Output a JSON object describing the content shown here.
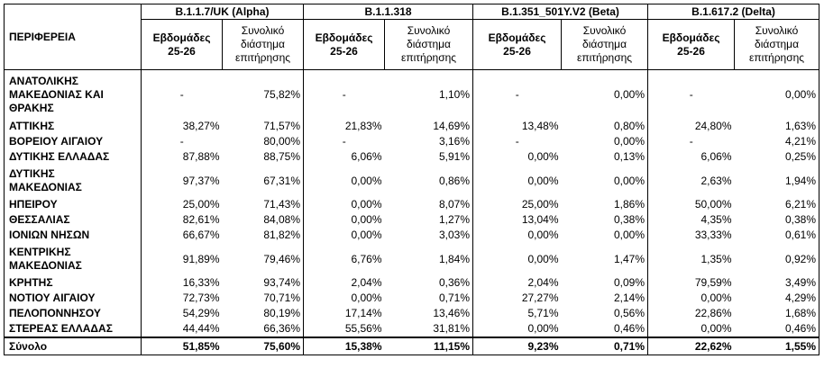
{
  "table": {
    "region_header": "ΠΕΡΙΦΕΡΕΙΑ",
    "variants": [
      {
        "name": "B.1.1.7/UK (Alpha)"
      },
      {
        "name": "B.1.1.318"
      },
      {
        "name": "B.1.351_501Y.V2 (Beta)"
      },
      {
        "name": "B.1.617.2 (Delta)"
      }
    ],
    "sub_week": [
      "Εβδομάδες",
      "25-26"
    ],
    "sub_total": [
      "Συνολικό",
      "διάστημα",
      "επιτήρησης"
    ],
    "rows": [
      {
        "region": [
          "ΑΝΑΤΟΛΙΚΗΣ",
          "ΜΑΚΕΔΟΝΙΑΣ ΚΑΙ",
          "ΘΡΑΚΗΣ"
        ],
        "values": [
          "-",
          "75,82%",
          "-",
          "1,10%",
          "-",
          "0,00%",
          "-",
          "0,00%"
        ]
      },
      {
        "region": [
          "ΑΤΤΙΚΗΣ"
        ],
        "values": [
          "38,27%",
          "71,57%",
          "21,83%",
          "14,69%",
          "13,48%",
          "0,80%",
          "24,80%",
          "1,63%"
        ]
      },
      {
        "region": [
          "ΒΟΡΕΙΟΥ ΑΙΓΑΙΟΥ"
        ],
        "values": [
          "-",
          "80,00%",
          "-",
          "3,16%",
          "-",
          "0,00%",
          "-",
          "4,21%"
        ]
      },
      {
        "region": [
          "ΔΥΤΙΚΗΣ ΕΛΛΑΔΑΣ"
        ],
        "values": [
          "87,88%",
          "88,75%",
          "6,06%",
          "5,91%",
          "0,00%",
          "0,13%",
          "6,06%",
          "0,25%"
        ]
      },
      {
        "region": [
          "ΔΥΤΙΚΗΣ",
          "ΜΑΚΕΔΟΝΙΑΣ"
        ],
        "values": [
          "97,37%",
          "67,31%",
          "0,00%",
          "0,86%",
          "0,00%",
          "0,00%",
          "2,63%",
          "1,94%"
        ]
      },
      {
        "region": [
          "ΗΠΕΙΡΟΥ"
        ],
        "values": [
          "25,00%",
          "71,43%",
          "0,00%",
          "8,07%",
          "25,00%",
          "1,86%",
          "50,00%",
          "6,21%"
        ]
      },
      {
        "region": [
          "ΘΕΣΣΑΛΙΑΣ"
        ],
        "values": [
          "82,61%",
          "84,08%",
          "0,00%",
          "1,27%",
          "13,04%",
          "0,38%",
          "4,35%",
          "0,38%"
        ]
      },
      {
        "region": [
          "ΙΟΝΙΩΝ ΝΗΣΩΝ"
        ],
        "values": [
          "66,67%",
          "81,82%",
          "0,00%",
          "3,03%",
          "0,00%",
          "0,00%",
          "33,33%",
          "0,61%"
        ]
      },
      {
        "region": [
          "ΚΕΝΤΡΙΚΗΣ",
          "ΜΑΚΕΔΟΝΙΑΣ"
        ],
        "values": [
          "91,89%",
          "79,46%",
          "6,76%",
          "1,84%",
          "0,00%",
          "1,47%",
          "1,35%",
          "0,92%"
        ]
      },
      {
        "region": [
          "ΚΡΗΤΗΣ"
        ],
        "values": [
          "16,33%",
          "93,74%",
          "2,04%",
          "0,36%",
          "2,04%",
          "0,09%",
          "79,59%",
          "3,49%"
        ]
      },
      {
        "region": [
          "ΝΟΤΙΟΥ ΑΙΓΑΙΟΥ"
        ],
        "values": [
          "72,73%",
          "70,71%",
          "0,00%",
          "0,71%",
          "27,27%",
          "2,14%",
          "0,00%",
          "4,29%"
        ]
      },
      {
        "region": [
          "ΠΕΛΟΠΟΝΝΗΣΟΥ"
        ],
        "values": [
          "54,29%",
          "80,19%",
          "17,14%",
          "13,46%",
          "5,71%",
          "0,56%",
          "22,86%",
          "1,68%"
        ]
      },
      {
        "region": [
          "ΣΤΕΡΕΑΣ ΕΛΛΑΔΑΣ"
        ],
        "values": [
          "44,44%",
          "66,36%",
          "55,56%",
          "31,81%",
          "0,00%",
          "0,46%",
          "0,00%",
          "0,46%"
        ]
      }
    ],
    "total": {
      "region": "Σύνολο",
      "values": [
        "51,85%",
        "75,60%",
        "15,38%",
        "11,15%",
        "9,23%",
        "0,71%",
        "22,62%",
        "1,55%"
      ]
    }
  }
}
